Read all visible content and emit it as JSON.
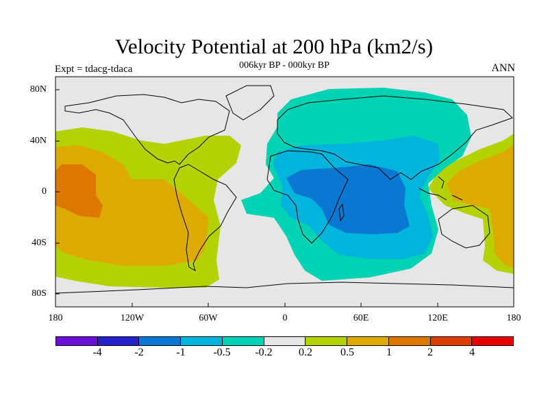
{
  "title": "Velocity Potential at 200 hPa (km2/s)",
  "subtitle": "006kyr BP - 000kyr BP",
  "left_label": "Expt = tdacg-tdaca",
  "right_label": "ANN",
  "x_axis": {
    "ticks": [
      "180",
      "120W",
      "60W",
      "0",
      "60E",
      "120E",
      "180"
    ]
  },
  "y_axis": {
    "ticks": [
      "80N",
      "40N",
      "0",
      "40S",
      "80S"
    ]
  },
  "colorbar": {
    "colors": [
      "#6a0fd8",
      "#2222cc",
      "#0a78d2",
      "#00b4dc",
      "#00d2b4",
      "#e6e6e6",
      "#b4d200",
      "#dcaa00",
      "#dc7800",
      "#dc3c00",
      "#e60000"
    ],
    "labels": [
      "-4",
      "-2",
      "-1",
      "-0.5",
      "-0.2",
      "0.2",
      "0.5",
      "1",
      "2",
      "4"
    ]
  }
}
